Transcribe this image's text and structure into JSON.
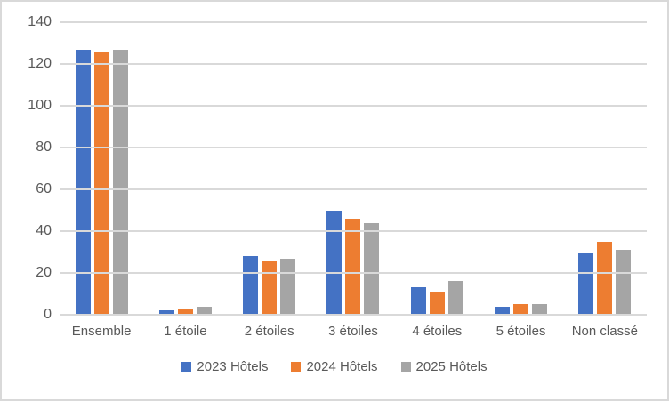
{
  "chart_data": {
    "type": "bar",
    "title": "",
    "xlabel": "",
    "ylabel": "",
    "categories": [
      "Ensemble",
      "1 étoile",
      "2 étoiles",
      "3 étoiles",
      "4 étoiles",
      "5 étoiles",
      "Non classé"
    ],
    "series": [
      {
        "name": "2023 Hôtels",
        "color": "#4472C4",
        "values": [
          127,
          2,
          28,
          50,
          13,
          4,
          30
        ]
      },
      {
        "name": "2024 Hôtels",
        "color": "#ED7D31",
        "values": [
          126,
          3,
          26,
          46,
          11,
          5,
          35
        ]
      },
      {
        "name": "2025 Hôtels",
        "color": "#A5A5A5",
        "values": [
          127,
          4,
          27,
          44,
          16,
          5,
          31
        ]
      }
    ],
    "ylim": [
      0,
      140
    ],
    "ytick_step": 20,
    "ytick_labels": [
      "0",
      "20",
      "40",
      "60",
      "80",
      "100",
      "120",
      "140"
    ],
    "grid": true,
    "legend_position": "bottom"
  },
  "colors": {
    "gridline": "#D9D9D9",
    "frame_border": "#D9D9D9",
    "axis_text": "#595959",
    "background": "#FFFFFF"
  }
}
